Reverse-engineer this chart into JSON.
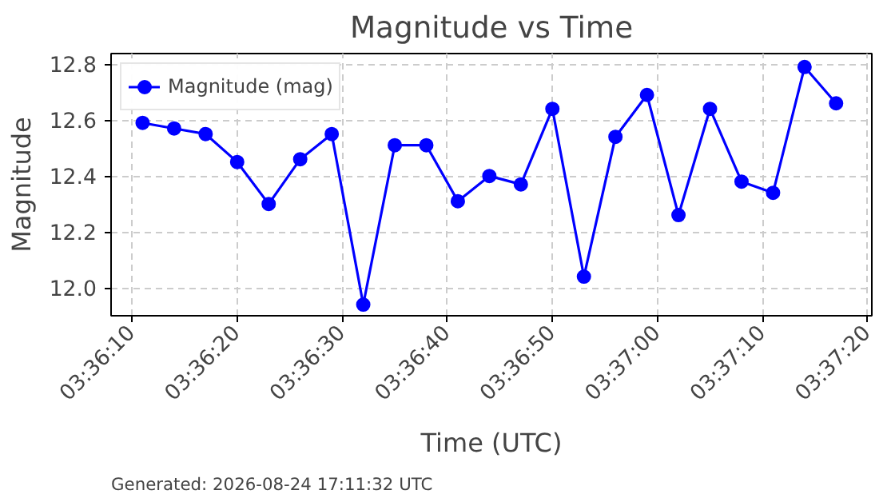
{
  "chart_data": {
    "type": "line",
    "title": "Magnitude vs Time",
    "xlabel": "Time (UTC)",
    "ylabel": "Magnitude",
    "x": [
      3.6030556,
      3.6038889,
      3.6047222,
      3.6055556,
      3.6063889,
      3.6072222,
      3.6080556,
      3.6088889,
      3.6097222,
      3.6105556,
      3.6113889,
      3.6122222,
      3.6130556,
      3.6138889,
      3.6147222,
      3.6155556,
      3.6163889,
      3.6172222,
      3.6180556,
      3.6188889,
      3.6197222,
      3.6205556,
      3.6213889
    ],
    "series": [
      {
        "name": "Magnitude (mag)",
        "color": "#0000ff",
        "values": [
          12.59,
          12.57,
          12.55,
          12.45,
          12.3,
          12.46,
          12.55,
          11.94,
          12.51,
          12.51,
          12.31,
          12.4,
          12.37,
          12.64,
          12.04,
          12.54,
          12.69,
          12.26,
          12.64,
          12.38,
          12.34,
          12.79,
          12.66
        ]
      }
    ],
    "xlim": [
      3.6022222,
      3.6223333
    ],
    "ylim": [
      11.9,
      12.838
    ],
    "xticks": [
      {
        "value": 3.6027778,
        "label": "03:36:10"
      },
      {
        "value": 3.6055556,
        "label": "03:36:20"
      },
      {
        "value": 3.6083333,
        "label": "03:36:30"
      },
      {
        "value": 3.6111111,
        "label": "03:36:40"
      },
      {
        "value": 3.6138889,
        "label": "03:36:50"
      },
      {
        "value": 3.6166667,
        "label": "03:37:00"
      },
      {
        "value": 3.6194444,
        "label": "03:37:10"
      },
      {
        "value": 3.6222222,
        "label": "03:37:20"
      }
    ],
    "yticks": [
      {
        "value": 12.0,
        "label": "12.0"
      },
      12.2,
      12.4,
      12.6,
      12.8
    ],
    "grid": true,
    "legend": "top left",
    "marker": "circle",
    "line_style": "solid",
    "annotations": [
      "Generated: 2026-08-24 17:11:32 UTC"
    ]
  }
}
